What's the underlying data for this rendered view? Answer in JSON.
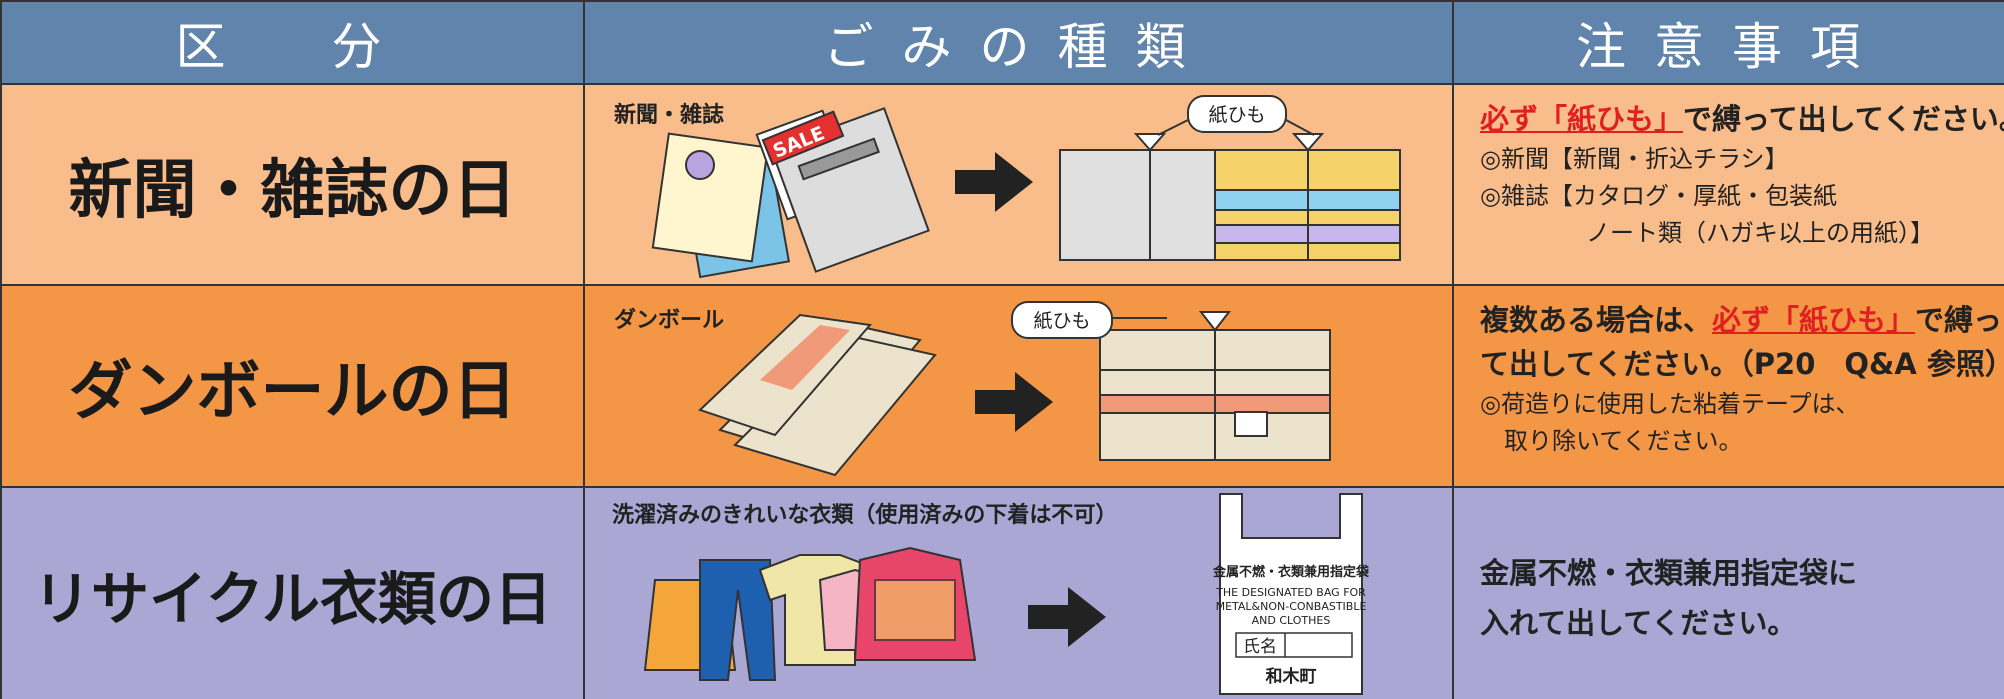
{
  "header": [
    "区　分",
    "ごみの種類",
    "注意事項"
  ],
  "rows": [
    {
      "category": "新聞・雑誌の日",
      "illustration": {
        "label": "新聞・雑誌",
        "string_label": "紙ひも",
        "sale": "SALE"
      },
      "notes": {
        "emphasis": "必ず「紙ひも」",
        "heading": "で縛って出してください。",
        "lines": [
          "◎新聞【新聞・折込チラシ】",
          "◎雑誌【カタログ・厚紙・包装紙",
          "ノート類（ハガキ以上の用紙）】"
        ]
      }
    },
    {
      "category": "ダンボールの日",
      "illustration": {
        "label": "ダンボール",
        "string_label": "紙ひも"
      },
      "notes": {
        "heading_start": "複数ある場合は、",
        "emphasis": "必ず「紙ひも」",
        "heading_end": "で縛っ",
        "heading_line2": "て出してください。（P20　Q&A 参照）",
        "lines": [
          "◎荷造りに使用した粘着テープは、",
          "取り除いてください。"
        ]
      }
    },
    {
      "category": "リサイクル衣類の日",
      "illustration": {
        "label": "洗濯済みのきれいな衣類（使用済みの下着は不可）",
        "bag": [
          "金属不燃・衣類兼用指定袋",
          "THE DESIGNATED BAG FOR",
          "METAL&NON-CONBASTIBLE",
          "AND CLOTHES"
        ],
        "name_field": "氏名",
        "town": "和木町"
      },
      "notes": {
        "lines": [
          "金属不燃・衣類兼用指定袋に",
          "入れて出してください。"
        ]
      }
    }
  ]
}
